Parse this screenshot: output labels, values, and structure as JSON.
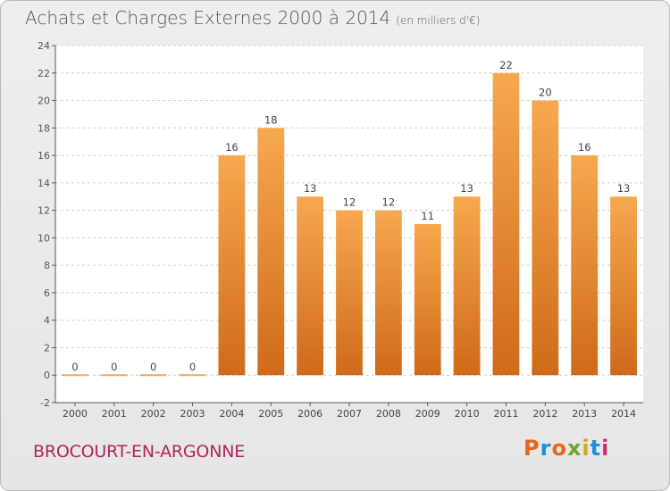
{
  "title": "Achats et Charges Externes 2000 à 2014",
  "units": "(en milliers d'€)",
  "commune": "BROCOURT-EN-ARGONNE",
  "logo": {
    "text": "Proxiti",
    "colors": [
      "#e8641d",
      "#1d8fd6",
      "#e8641d",
      "#6aa72d",
      "#d4a417",
      "#1d8fd6",
      "#d12d6b"
    ]
  },
  "colors": {
    "bar_light": "#f7a84e",
    "bar_dark": "#cf6a1a",
    "commune": "#b0245a",
    "axis": "#555555"
  },
  "chart_data": {
    "type": "bar",
    "categories": [
      "2000",
      "2001",
      "2002",
      "2003",
      "2004",
      "2005",
      "2006",
      "2007",
      "2008",
      "2009",
      "2010",
      "2011",
      "2012",
      "2013",
      "2014"
    ],
    "values": [
      0,
      0,
      0,
      0,
      16,
      18,
      13,
      12,
      12,
      11,
      13,
      22,
      20,
      16,
      13
    ],
    "ylim": [
      -2,
      24
    ],
    "yticks": [
      -2,
      0,
      2,
      4,
      6,
      8,
      10,
      12,
      14,
      16,
      18,
      20,
      22,
      24
    ],
    "grid": true,
    "title": "Achats et Charges Externes 2000 à 2014",
    "xlabel": "",
    "ylabel": ""
  }
}
